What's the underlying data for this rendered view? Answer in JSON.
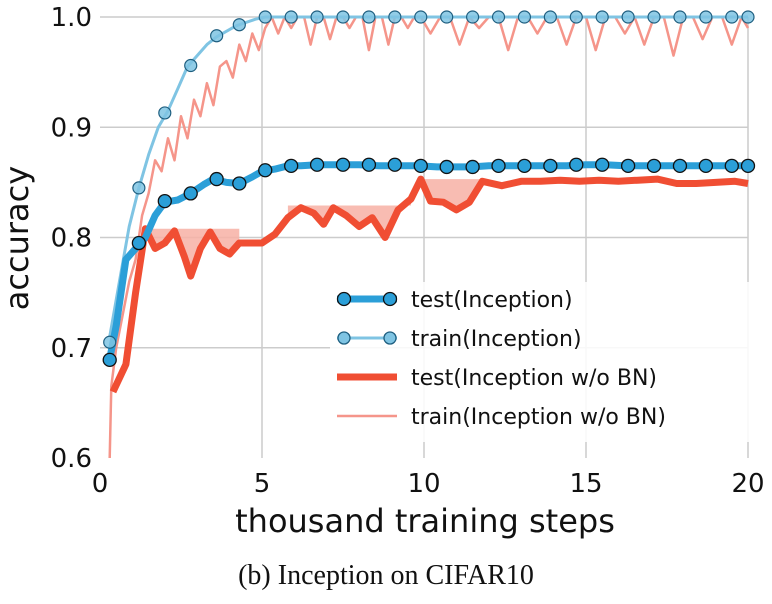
{
  "chart_data": {
    "type": "line",
    "caption": "(b) Inception on CIFAR10",
    "xlabel": "thousand training steps",
    "ylabel": "accuracy",
    "xlim": [
      0,
      20
    ],
    "ylim": [
      0.6,
      1.0
    ],
    "xticks": [
      0,
      5,
      10,
      15,
      20
    ],
    "yticks": [
      0.6,
      0.7,
      0.8,
      0.9,
      1.0
    ],
    "xtick_labels": [
      "0",
      "5",
      "10",
      "15",
      "20"
    ],
    "ytick_labels": [
      "0.6",
      "0.7",
      "0.8",
      "0.9",
      "1.0"
    ],
    "grid": true,
    "legend_position": "bottom-right",
    "colors": {
      "test_bn": "#2b9fd8",
      "train_bn": "#7fc4e3",
      "test_nobn": "#f04e33",
      "train_nobn": "#f5958a",
      "fill": "#f7b0a4",
      "grid": "#cccccc"
    },
    "series": [
      {
        "name": "test(Inception)",
        "key": "test_bn",
        "x": [
          0.3,
          0.5,
          0.8,
          1.1,
          1.4,
          1.7,
          2.0,
          2.4,
          2.8,
          3.2,
          3.5,
          3.9,
          4.3,
          4.7,
          5.0,
          5.4,
          5.8,
          6.2,
          6.7,
          7.2,
          7.6,
          8.0,
          8.6,
          9.2,
          9.8,
          10.4,
          11.0,
          11.5,
          12.0,
          12.6,
          13.2,
          13.8,
          14.4,
          15.0,
          15.6,
          16.2,
          16.8,
          17.4,
          18.0,
          18.6,
          19.2,
          19.8,
          20.0
        ],
        "y": [
          0.69,
          0.72,
          0.78,
          0.79,
          0.8,
          0.82,
          0.832,
          0.834,
          0.84,
          0.848,
          0.853,
          0.85,
          0.849,
          0.855,
          0.86,
          0.862,
          0.865,
          0.865,
          0.866,
          0.866,
          0.866,
          0.866,
          0.865,
          0.865,
          0.865,
          0.864,
          0.864,
          0.864,
          0.865,
          0.865,
          0.865,
          0.865,
          0.865,
          0.866,
          0.866,
          0.865,
          0.865,
          0.865,
          0.865,
          0.865,
          0.865,
          0.865,
          0.865
        ],
        "marker_x": [
          0.3,
          1.2,
          2.0,
          2.8,
          3.6,
          4.3,
          5.1,
          5.9,
          6.7,
          7.5,
          8.3,
          9.1,
          9.9,
          10.7,
          11.5,
          12.3,
          13.1,
          13.9,
          14.7,
          15.5,
          16.3,
          17.1,
          17.9,
          18.7,
          19.5,
          20.0
        ],
        "marker_y": [
          0.689,
          0.795,
          0.833,
          0.84,
          0.853,
          0.849,
          0.861,
          0.865,
          0.866,
          0.866,
          0.866,
          0.866,
          0.865,
          0.864,
          0.864,
          0.865,
          0.865,
          0.865,
          0.866,
          0.866,
          0.865,
          0.865,
          0.865,
          0.865,
          0.865,
          0.865
        ]
      },
      {
        "name": "train(Inception)",
        "key": "train_bn",
        "x": [
          0.3,
          0.6,
          0.9,
          1.2,
          1.5,
          1.8,
          2.1,
          2.4,
          2.7,
          3.0,
          3.3,
          3.6,
          3.9,
          4.2,
          4.5,
          4.8,
          5.1,
          5.5,
          6.0,
          20.0
        ],
        "y": [
          0.71,
          0.76,
          0.81,
          0.845,
          0.875,
          0.9,
          0.915,
          0.935,
          0.955,
          0.965,
          0.975,
          0.982,
          0.987,
          0.992,
          0.995,
          0.998,
          1.0,
          1.0,
          1.0,
          1.0
        ],
        "marker_x": [
          0.3,
          1.2,
          2.0,
          2.8,
          3.6,
          4.3,
          5.1,
          5.9,
          6.7,
          7.5,
          8.3,
          9.1,
          9.9,
          10.7,
          11.5,
          12.3,
          13.1,
          13.9,
          14.7,
          15.5,
          16.3,
          17.1,
          17.9,
          18.7,
          19.5,
          20.0
        ],
        "marker_y": [
          0.705,
          0.845,
          0.913,
          0.956,
          0.983,
          0.993,
          1.0,
          1.0,
          1.0,
          1.0,
          1.0,
          1.0,
          1.0,
          1.0,
          1.0,
          1.0,
          1.0,
          1.0,
          1.0,
          1.0,
          1.0,
          1.0,
          1.0,
          1.0,
          1.0,
          1.0
        ]
      },
      {
        "name": "test(Inception w/o BN)",
        "key": "test_nobn",
        "x": [
          0.4,
          0.8,
          1.1,
          1.4,
          1.7,
          2.0,
          2.3,
          2.6,
          2.8,
          3.1,
          3.4,
          3.7,
          4.0,
          4.3,
          4.6,
          5.0,
          5.4,
          5.8,
          6.2,
          6.6,
          6.9,
          7.2,
          7.6,
          8.0,
          8.4,
          8.8,
          9.2,
          9.6,
          9.9,
          10.2,
          10.6,
          11.0,
          11.4,
          11.8,
          12.4,
          13.0,
          13.6,
          14.2,
          14.8,
          15.4,
          16.0,
          16.6,
          17.2,
          17.8,
          18.4,
          19.0,
          19.6,
          20.0
        ],
        "y": [
          0.66,
          0.685,
          0.75,
          0.808,
          0.79,
          0.795,
          0.806,
          0.783,
          0.765,
          0.79,
          0.805,
          0.79,
          0.785,
          0.795,
          0.795,
          0.795,
          0.803,
          0.818,
          0.827,
          0.822,
          0.812,
          0.827,
          0.82,
          0.81,
          0.818,
          0.8,
          0.825,
          0.835,
          0.853,
          0.833,
          0.832,
          0.825,
          0.832,
          0.851,
          0.847,
          0.851,
          0.851,
          0.852,
          0.851,
          0.852,
          0.851,
          0.852,
          0.853,
          0.849,
          0.849,
          0.85,
          0.851,
          0.849
        ],
        "fill_regions": [
          {
            "x0": 1.4,
            "x1": 4.3,
            "level": 0.808
          },
          {
            "x0": 5.8,
            "x1": 9.6,
            "level": 0.829
          },
          {
            "x0": 9.9,
            "x1": 11.8,
            "level": 0.853
          }
        ]
      },
      {
        "name": "train(Inception w/o BN)",
        "key": "train_nobn",
        "x": [
          0.3,
          0.35,
          0.5,
          0.7,
          0.9,
          1.1,
          1.3,
          1.5,
          1.7,
          1.9,
          2.1,
          2.3,
          2.5,
          2.7,
          2.9,
          3.1,
          3.3,
          3.5,
          3.7,
          3.9,
          4.1,
          4.3,
          4.5,
          4.7,
          4.9,
          5.1,
          5.3,
          5.5,
          5.7,
          5.9,
          6.1,
          6.3,
          6.5,
          6.7,
          6.9,
          7.1,
          7.3,
          7.5,
          7.7,
          7.9,
          8.1,
          8.3,
          8.5,
          8.7,
          8.9,
          9.1,
          9.3,
          9.5,
          9.7,
          9.9,
          10.2,
          10.5,
          10.8,
          11.1,
          11.4,
          11.7,
          12.0,
          12.3,
          12.6,
          12.9,
          13.2,
          13.5,
          13.8,
          14.1,
          14.4,
          14.7,
          15.0,
          15.3,
          15.6,
          15.9,
          16.2,
          16.5,
          16.8,
          17.1,
          17.4,
          17.7,
          18.0,
          18.3,
          18.6,
          18.9,
          19.2,
          19.5,
          19.8,
          20.0
        ],
        "y": [
          0.6,
          0.665,
          0.7,
          0.73,
          0.76,
          0.78,
          0.82,
          0.84,
          0.87,
          0.86,
          0.89,
          0.87,
          0.91,
          0.89,
          0.925,
          0.91,
          0.94,
          0.92,
          0.955,
          0.96,
          0.945,
          0.975,
          0.96,
          0.985,
          0.97,
          0.99,
          1.0,
          0.985,
          1.0,
          0.99,
          1.0,
          1.0,
          0.975,
          1.0,
          1.0,
          0.98,
          1.0,
          1.0,
          0.99,
          1.0,
          1.0,
          0.97,
          1.0,
          1.0,
          0.975,
          1.0,
          1.0,
          0.99,
          1.0,
          1.0,
          0.985,
          1.0,
          1.0,
          0.975,
          1.0,
          0.99,
          1.0,
          1.0,
          0.97,
          1.0,
          1.0,
          0.985,
          1.0,
          1.0,
          0.975,
          1.0,
          1.0,
          0.97,
          1.0,
          1.0,
          0.985,
          1.0,
          0.975,
          1.0,
          1.0,
          0.965,
          1.0,
          1.0,
          0.98,
          1.0,
          1.0,
          0.975,
          1.0,
          0.99
        ]
      }
    ],
    "legend": [
      {
        "key": "test_bn",
        "label": "test(Inception)"
      },
      {
        "key": "train_bn",
        "label": "train(Inception)"
      },
      {
        "key": "test_nobn",
        "label": "test(Inception w/o BN)"
      },
      {
        "key": "train_nobn",
        "label": "train(Inception w/o BN)"
      }
    ]
  }
}
